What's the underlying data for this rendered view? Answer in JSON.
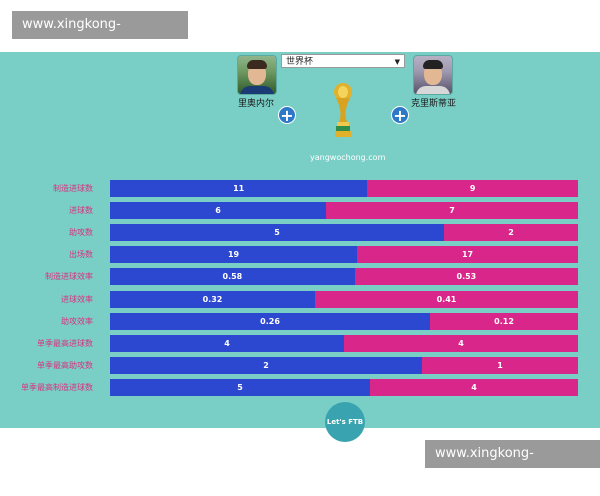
{
  "watermark": {
    "text": "www.xingkong-sport.net"
  },
  "header": {
    "competition": "世界杯",
    "left_player": "里奥内尔",
    "right_player": "克里斯蒂亚",
    "site": "yangwochong.com"
  },
  "footer": {
    "button_label": "Let's FTB"
  },
  "colors": {
    "left": "#2c48d1",
    "right": "#d8268b",
    "background": "#79cfc6"
  },
  "stats": [
    {
      "label": "制造进球数",
      "left": "11",
      "right": "9",
      "left_share": 0.55
    },
    {
      "label": "进球数",
      "left": "6",
      "right": "7",
      "left_share": 0.462
    },
    {
      "label": "助攻数",
      "left": "5",
      "right": "2",
      "left_share": 0.714
    },
    {
      "label": "出场数",
      "left": "19",
      "right": "17",
      "left_share": 0.528
    },
    {
      "label": "制造进球效率",
      "left": "0.58",
      "right": "0.53",
      "left_share": 0.523
    },
    {
      "label": "进球效率",
      "left": "0.32",
      "right": "0.41",
      "left_share": 0.438
    },
    {
      "label": "助攻效率",
      "left": "0.26",
      "right": "0.12",
      "left_share": 0.684
    },
    {
      "label": "单季最高进球数",
      "left": "4",
      "right": "4",
      "left_share": 0.5
    },
    {
      "label": "单季最高助攻数",
      "left": "2",
      "right": "1",
      "left_share": 0.667
    },
    {
      "label": "单季最高制造进球数",
      "left": "5",
      "right": "4",
      "left_share": 0.556
    }
  ]
}
